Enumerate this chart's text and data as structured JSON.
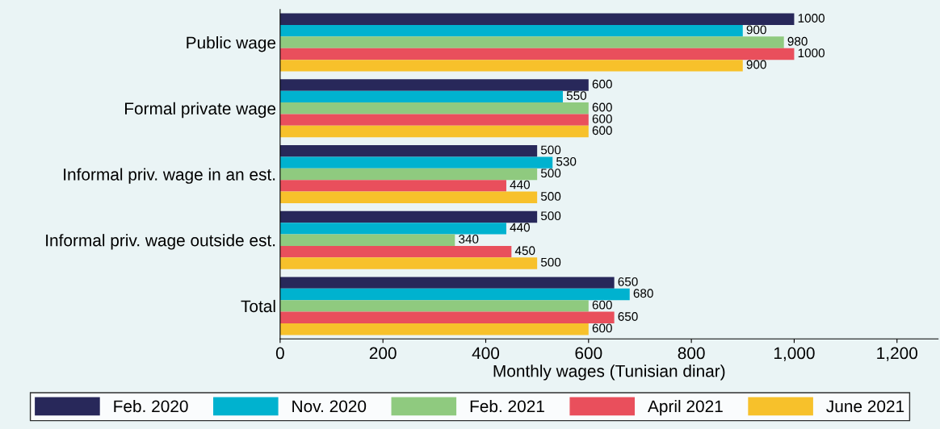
{
  "chart_data": {
    "type": "bar",
    "orientation": "horizontal",
    "xlabel": "Monthly wages (Tunisian dinar)",
    "categories": [
      "Public wage",
      "Formal private wage",
      "Informal priv. wage in an est.",
      "Informal priv. wage outside est.",
      "Total"
    ],
    "series": [
      {
        "name": "Feb. 2020",
        "color": "#28285a",
        "values": [
          1000,
          600,
          500,
          500,
          650
        ]
      },
      {
        "name": "Nov. 2020",
        "color": "#00b2cf",
        "values": [
          900,
          550,
          530,
          440,
          680
        ]
      },
      {
        "name": "Feb. 2021",
        "color": "#8fca7f",
        "values": [
          980,
          600,
          500,
          340,
          600
        ]
      },
      {
        "name": "April 2021",
        "color": "#e94f5c",
        "values": [
          1000,
          600,
          440,
          450,
          650
        ]
      },
      {
        "name": "June 2021",
        "color": "#f7c12b",
        "values": [
          900,
          600,
          500,
          500,
          600
        ]
      }
    ],
    "xlim": [
      0,
      1280
    ],
    "xticks": [
      0,
      200,
      400,
      600,
      800,
      {
        "value": 1000,
        "label": "1,000"
      },
      {
        "value": 1200,
        "label": "1,200"
      }
    ],
    "data_labels": true,
    "grid": false,
    "legend": "bottom"
  }
}
